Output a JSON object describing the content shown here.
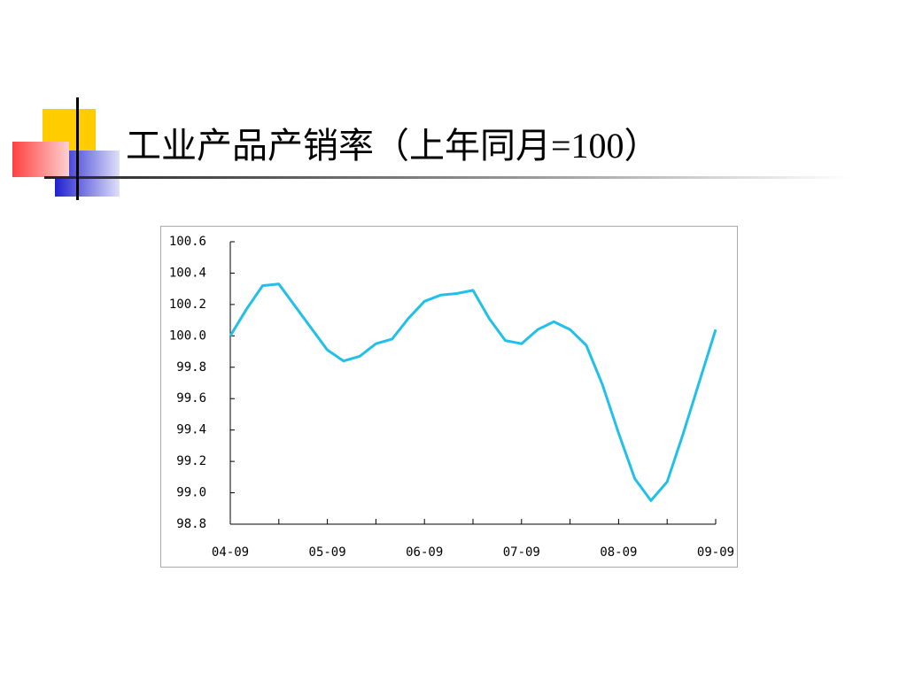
{
  "chart_data": {
    "type": "line",
    "title": "工业产品产销率（上年同月=100）",
    "categories": [
      "04-09",
      null,
      null,
      null,
      null,
      null,
      "05-09",
      null,
      null,
      null,
      null,
      null,
      "06-09",
      null,
      null,
      null,
      null,
      null,
      "07-09",
      null,
      null,
      null,
      null,
      null,
      "08-09",
      null,
      null,
      null,
      null,
      null,
      "09-09"
    ],
    "series": [
      {
        "color": "#22c0e8",
        "values": [
          100.0,
          100.17,
          100.32,
          100.33,
          100.19,
          100.05,
          99.91,
          99.84,
          99.87,
          99.95,
          99.98,
          100.11,
          100.22,
          100.26,
          100.27,
          100.29,
          100.11,
          99.97,
          99.95,
          100.04,
          100.09,
          100.04,
          99.94,
          99.69,
          99.38,
          99.09,
          98.95,
          99.07,
          99.38,
          99.71,
          100.04
        ]
      }
    ],
    "ylim": [
      98.8,
      100.6
    ],
    "yticks": [
      98.8,
      {
        "value": 99.0,
        "label": "99.0"
      },
      99.2,
      99.4,
      99.6,
      99.8,
      {
        "value": 100.0,
        "label": "100.0"
      },
      100.2,
      100.4,
      100.6
    ]
  }
}
